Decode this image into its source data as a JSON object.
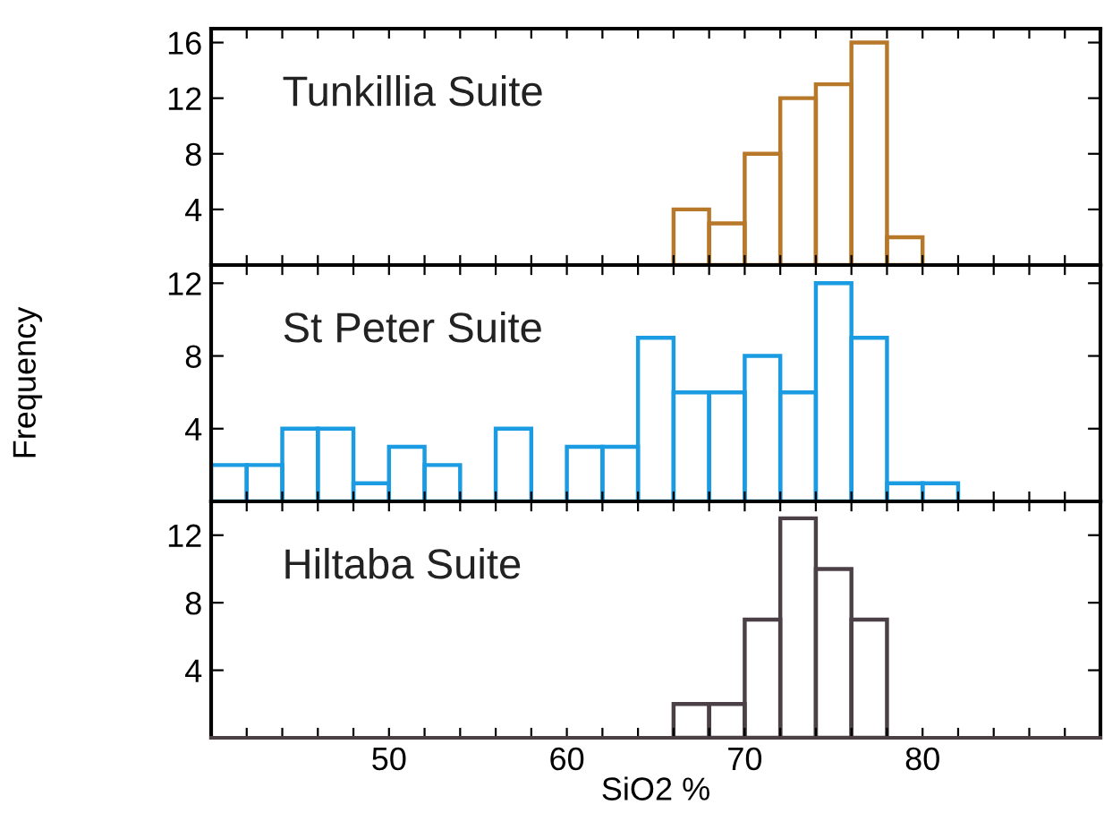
{
  "chart_data": [
    {
      "type": "histogram",
      "annotations": [
        "Tunkillia Suite"
      ],
      "color": "#b8782a",
      "bins": [
        66,
        68,
        70,
        72,
        74,
        76,
        78,
        80
      ],
      "values": [
        4,
        3,
        8,
        12,
        13,
        16,
        2
      ],
      "xlim": [
        40,
        90
      ],
      "xticks": [
        {
          "value": 42,
          "label": null
        },
        {
          "value": 44,
          "label": null
        },
        {
          "value": 46,
          "label": null
        },
        {
          "value": 48,
          "label": null
        },
        {
          "value": 50,
          "label": null
        },
        {
          "value": 52,
          "label": null
        },
        {
          "value": 54,
          "label": null
        },
        {
          "value": 56,
          "label": null
        },
        {
          "value": 58,
          "label": null
        },
        {
          "value": 60,
          "label": null
        },
        {
          "value": 62,
          "label": null
        },
        {
          "value": 64,
          "label": null
        },
        {
          "value": 66,
          "label": null
        },
        {
          "value": 68,
          "label": null
        },
        {
          "value": 70,
          "label": null
        },
        {
          "value": 72,
          "label": null
        },
        {
          "value": 74,
          "label": null
        },
        {
          "value": 76,
          "label": null
        },
        {
          "value": 78,
          "label": null
        },
        {
          "value": 80,
          "label": null
        },
        {
          "value": 82,
          "label": null
        },
        {
          "value": 84,
          "label": null
        },
        {
          "value": 86,
          "label": null
        },
        {
          "value": 88,
          "label": null
        }
      ],
      "ylim": [
        0,
        17
      ],
      "yticks": [
        4,
        8,
        12,
        16
      ],
      "tick_labels": "y",
      "grid": false,
      "legend": false
    },
    {
      "type": "histogram",
      "annotations": [
        "St Peter Suite"
      ],
      "color": "#1a9be2",
      "ylabel": "Frequency",
      "bins": [
        40,
        42,
        44,
        46,
        48,
        50,
        52,
        54,
        56,
        58,
        60,
        62,
        64,
        66,
        68,
        70,
        72,
        74,
        76,
        78,
        80,
        82
      ],
      "values": [
        2,
        2,
        4,
        4,
        1,
        3,
        2,
        0,
        4,
        0,
        3,
        3,
        9,
        6,
        6,
        8,
        6,
        12,
        9,
        1,
        1
      ],
      "xlim": [
        40,
        90
      ],
      "xticks": [
        {
          "value": 42,
          "label": null
        },
        {
          "value": 44,
          "label": null
        },
        {
          "value": 46,
          "label": null
        },
        {
          "value": 48,
          "label": null
        },
        {
          "value": 50,
          "label": null
        },
        {
          "value": 52,
          "label": null
        },
        {
          "value": 54,
          "label": null
        },
        {
          "value": 56,
          "label": null
        },
        {
          "value": 58,
          "label": null
        },
        {
          "value": 60,
          "label": null
        },
        {
          "value": 62,
          "label": null
        },
        {
          "value": 64,
          "label": null
        },
        {
          "value": 66,
          "label": null
        },
        {
          "value": 68,
          "label": null
        },
        {
          "value": 70,
          "label": null
        },
        {
          "value": 72,
          "label": null
        },
        {
          "value": 74,
          "label": null
        },
        {
          "value": 76,
          "label": null
        },
        {
          "value": 78,
          "label": null
        },
        {
          "value": 80,
          "label": null
        },
        {
          "value": 82,
          "label": null
        },
        {
          "value": 84,
          "label": null
        },
        {
          "value": 86,
          "label": null
        },
        {
          "value": 88,
          "label": null
        }
      ],
      "ylim": [
        0,
        13
      ],
      "yticks": [
        4,
        8,
        12
      ],
      "tick_labels": "y",
      "grid": false,
      "legend": false
    },
    {
      "type": "histogram",
      "annotations": [
        "Hiltaba Suite"
      ],
      "color": "#4a4045",
      "xlabel": "SiO2 %",
      "bins": [
        66,
        68,
        70,
        72,
        74,
        76,
        78
      ],
      "values": [
        2,
        2,
        7,
        13,
        10,
        7
      ],
      "xlim": [
        40,
        90
      ],
      "xticks": [
        {
          "value": 42,
          "label": null
        },
        {
          "value": 44,
          "label": null
        },
        {
          "value": 46,
          "label": null
        },
        {
          "value": 48,
          "label": null
        },
        50,
        {
          "value": 52,
          "label": null
        },
        {
          "value": 54,
          "label": null
        },
        {
          "value": 56,
          "label": null
        },
        {
          "value": 58,
          "label": null
        },
        60,
        {
          "value": 62,
          "label": null
        },
        {
          "value": 64,
          "label": null
        },
        {
          "value": 66,
          "label": null
        },
        {
          "value": 68,
          "label": null
        },
        70,
        {
          "value": 72,
          "label": null
        },
        {
          "value": 74,
          "label": null
        },
        {
          "value": 76,
          "label": null
        },
        {
          "value": 78,
          "label": null
        },
        80,
        {
          "value": 82,
          "label": null
        },
        {
          "value": 84,
          "label": null
        },
        {
          "value": 86,
          "label": null
        },
        {
          "value": 88,
          "label": null
        }
      ],
      "ylim": [
        0,
        14
      ],
      "yticks": [
        4,
        8,
        12
      ],
      "grid": false,
      "legend": false
    }
  ]
}
